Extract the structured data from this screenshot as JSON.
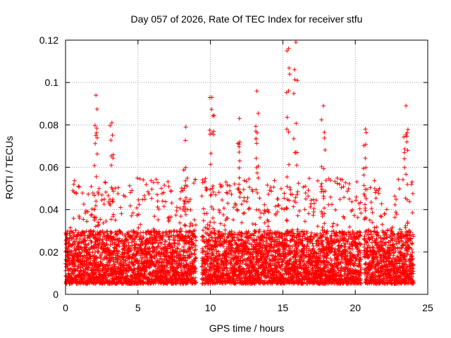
{
  "chart_data": {
    "type": "scatter",
    "title": "Day 057 of 2026, Rate Of TEC Index for receiver stfu",
    "xlabel": "GPS time / hours",
    "ylabel": "ROTI / TECUs",
    "xlim": [
      0,
      25
    ],
    "ylim": [
      0,
      0.12
    ],
    "xticks": [
      0,
      5,
      10,
      15,
      20,
      25
    ],
    "xtick_labels": [
      "0",
      "5",
      "10",
      "15",
      "20",
      "25"
    ],
    "yticks": [
      0,
      0.02,
      0.04,
      0.06,
      0.08,
      0.1,
      0.12
    ],
    "ytick_labels": [
      "0",
      "0.02",
      "0.04",
      "0.06",
      "0.08",
      "0.1",
      "0.12"
    ],
    "grid": true,
    "marker": "+",
    "marker_color": "#ff0000",
    "data_coverage_hours": [
      [
        0,
        9.0
      ],
      [
        9.4,
        20.4
      ],
      [
        20.6,
        24.0
      ]
    ],
    "baseline_band": [
      0.005,
      0.03
    ],
    "notable_peaks": [
      {
        "x": 2.1,
        "y": 0.094
      },
      {
        "x": 3.2,
        "y": 0.081
      },
      {
        "x": 8.3,
        "y": 0.079
      },
      {
        "x": 10.1,
        "y": 0.093
      },
      {
        "x": 12.0,
        "y": 0.083
      },
      {
        "x": 13.2,
        "y": 0.096
      },
      {
        "x": 15.4,
        "y": 0.116
      },
      {
        "x": 15.9,
        "y": 0.119
      },
      {
        "x": 17.8,
        "y": 0.089
      },
      {
        "x": 20.7,
        "y": 0.078
      },
      {
        "x": 23.5,
        "y": 0.089
      }
    ]
  }
}
